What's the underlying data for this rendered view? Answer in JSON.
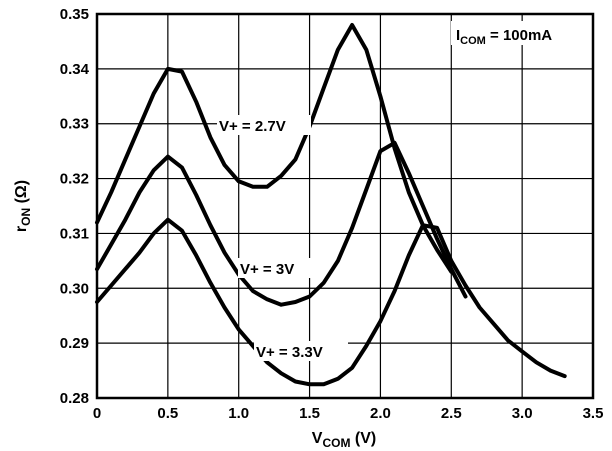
{
  "chart_data": {
    "type": "line",
    "xlabel": {
      "main": "V",
      "sub": "COM",
      "tail": " (V)"
    },
    "ylabel": {
      "main": "r",
      "sub": "ON",
      "tail": " (Ω)"
    },
    "annotation": {
      "main": "I",
      "sub": "COM",
      "tail": " = 100mA"
    },
    "xlim": [
      0,
      3.5
    ],
    "ylim": [
      0.28,
      0.35
    ],
    "x_ticks": [
      "0",
      "0.5",
      "1.0",
      "1.5",
      "2.0",
      "2.5",
      "3.0",
      "3.5"
    ],
    "y_ticks": [
      "0.28",
      "0.29",
      "0.30",
      "0.31",
      "0.32",
      "0.33",
      "0.34",
      "0.35"
    ],
    "grid": true,
    "series": [
      {
        "name": "V+ = 2.7V",
        "x": [
          0,
          0.1,
          0.2,
          0.3,
          0.4,
          0.5,
          0.6,
          0.7,
          0.8,
          0.9,
          1.0,
          1.1,
          1.2,
          1.3,
          1.4,
          1.5,
          1.6,
          1.7,
          1.8,
          1.9,
          2.0,
          2.1,
          2.2,
          2.3,
          2.4,
          2.5
        ],
        "y": [
          0.312,
          0.3175,
          0.3235,
          0.3295,
          0.3355,
          0.34,
          0.3395,
          0.334,
          0.3275,
          0.3225,
          0.3195,
          0.3185,
          0.3185,
          0.3205,
          0.3235,
          0.3295,
          0.3365,
          0.3435,
          0.348,
          0.3435,
          0.335,
          0.3255,
          0.3175,
          0.3115,
          0.307,
          0.303
        ]
      },
      {
        "name": "V+ = 3V",
        "x": [
          0,
          0.1,
          0.2,
          0.3,
          0.4,
          0.5,
          0.6,
          0.7,
          0.8,
          0.9,
          1.0,
          1.1,
          1.2,
          1.3,
          1.4,
          1.5,
          1.6,
          1.7,
          1.8,
          1.9,
          2.0,
          2.1,
          2.2,
          2.3,
          2.4,
          2.5,
          2.6
        ],
        "y": [
          0.3035,
          0.308,
          0.3125,
          0.3175,
          0.3215,
          0.324,
          0.322,
          0.317,
          0.3115,
          0.3065,
          0.3025,
          0.2995,
          0.298,
          0.297,
          0.2975,
          0.2985,
          0.301,
          0.305,
          0.311,
          0.318,
          0.325,
          0.3265,
          0.321,
          0.315,
          0.309,
          0.3035,
          0.2985
        ]
      },
      {
        "name": "V+ = 3.3V",
        "x": [
          0,
          0.1,
          0.2,
          0.3,
          0.4,
          0.5,
          0.6,
          0.7,
          0.8,
          0.9,
          1.0,
          1.1,
          1.2,
          1.3,
          1.4,
          1.5,
          1.6,
          1.7,
          1.8,
          1.9,
          2.0,
          2.1,
          2.2,
          2.3,
          2.4,
          2.5,
          2.6,
          2.7,
          2.8,
          2.9,
          3.0,
          3.1,
          3.2,
          3.3
        ],
        "y": [
          0.2975,
          0.3005,
          0.3035,
          0.3065,
          0.31,
          0.3125,
          0.3105,
          0.306,
          0.301,
          0.2965,
          0.2925,
          0.2895,
          0.2865,
          0.2845,
          0.283,
          0.2825,
          0.2825,
          0.2835,
          0.2855,
          0.2895,
          0.294,
          0.2995,
          0.306,
          0.3115,
          0.311,
          0.305,
          0.3005,
          0.2965,
          0.2935,
          0.2905,
          0.2885,
          0.2865,
          0.285,
          0.284
        ]
      }
    ]
  }
}
